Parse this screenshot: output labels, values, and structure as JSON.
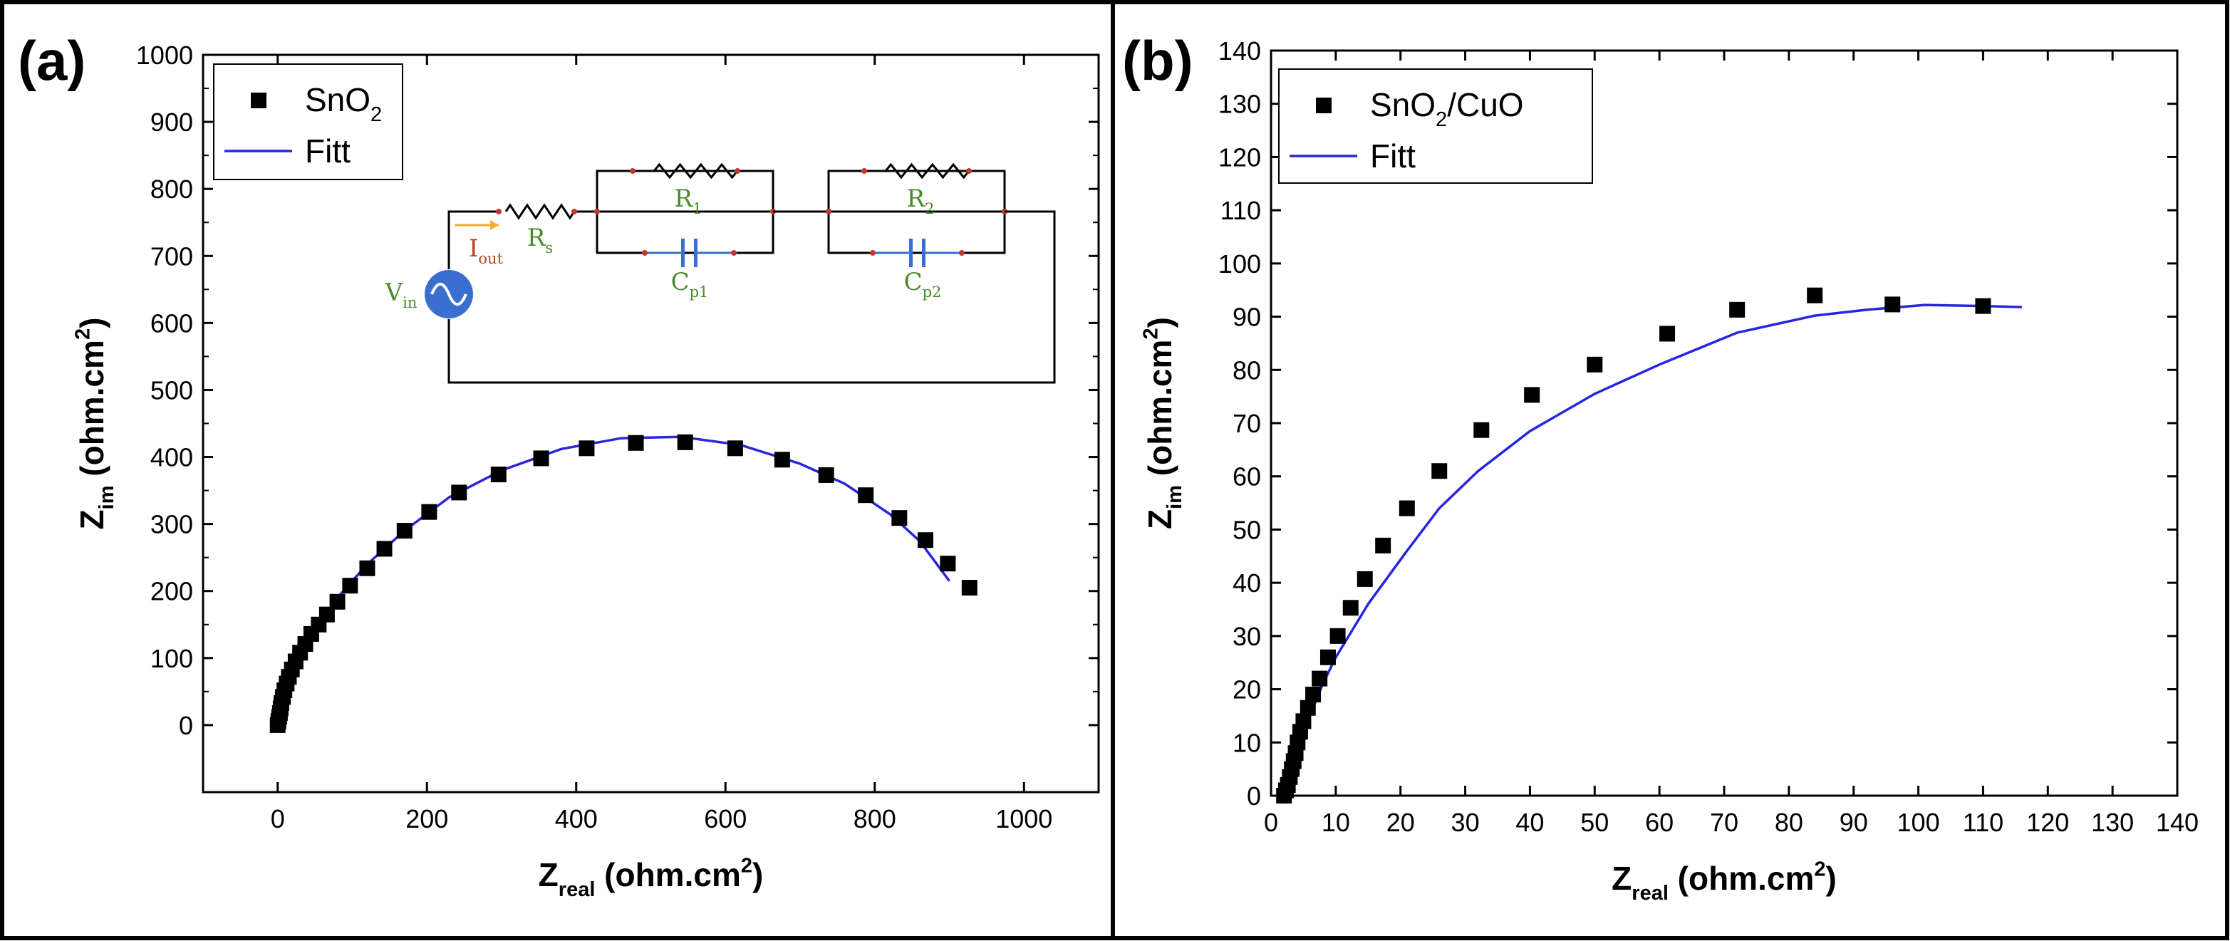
{
  "chart_data": [
    {
      "type": "scatter",
      "panel_label": "(a)",
      "xlabel": {
        "main": "Z",
        "sub": "real",
        "unit": " (ohm.cm",
        "sup": "2",
        "close": ")"
      },
      "ylabel": {
        "main": "Z",
        "sub": "im",
        "unit": " (ohm.cm",
        "sup": "2",
        "close": ")"
      },
      "xlim": [
        -100,
        1100
      ],
      "ylim": [
        -100,
        1000
      ],
      "xticks": [
        0,
        200,
        400,
        600,
        800,
        1000
      ],
      "yticks": [
        0,
        100,
        200,
        300,
        400,
        500,
        600,
        700,
        800,
        900,
        1000
      ],
      "legend": {
        "placement": "top-left",
        "marker_label": "SnO",
        "marker_sub": "2",
        "marker_rest": "",
        "line_label": "Fitt"
      },
      "colors": {
        "fit": "#2626e0",
        "marker": "#000000"
      },
      "series": [
        {
          "name": "SnO2",
          "kind": "marker",
          "points": [
            [
              0,
              0
            ],
            [
              1,
              6
            ],
            [
              2,
              12
            ],
            [
              3,
              18
            ],
            [
              4,
              25
            ],
            [
              5,
              33
            ],
            [
              7,
              42
            ],
            [
              9,
              52
            ],
            [
              12,
              62
            ],
            [
              15,
              72
            ],
            [
              19,
              83
            ],
            [
              24,
              95
            ],
            [
              30,
              108
            ],
            [
              37,
              121
            ],
            [
              45,
              136
            ],
            [
              55,
              150
            ],
            [
              66,
              165
            ],
            [
              80,
              184
            ],
            [
              97,
              208
            ],
            [
              120,
              234
            ],
            [
              143,
              263
            ],
            [
              170,
              290
            ],
            [
              203,
              318
            ],
            [
              243,
              347
            ],
            [
              296,
              374
            ],
            [
              353,
              398
            ],
            [
              414,
              413
            ],
            [
              480,
              421
            ],
            [
              546,
              422
            ],
            [
              613,
              413
            ],
            [
              676,
              396
            ],
            [
              735,
              373
            ],
            [
              788,
              343
            ],
            [
              833,
              309
            ],
            [
              868,
              276
            ],
            [
              898,
              241
            ],
            [
              927,
              205
            ]
          ]
        },
        {
          "name": "Fitt",
          "kind": "line",
          "points": [
            [
              0,
              0
            ],
            [
              5,
              25
            ],
            [
              10,
              50
            ],
            [
              20,
              80
            ],
            [
              30,
              100
            ],
            [
              50,
              140
            ],
            [
              80,
              190
            ],
            [
              120,
              240
            ],
            [
              170,
              290
            ],
            [
              230,
              340
            ],
            [
              300,
              380
            ],
            [
              380,
              412
            ],
            [
              460,
              428
            ],
            [
              540,
              430
            ],
            [
              620,
              418
            ],
            [
              700,
              390
            ],
            [
              760,
              360
            ],
            [
              820,
              315
            ],
            [
              860,
              275
            ],
            [
              900,
              215
            ]
          ]
        }
      ],
      "inset": {
        "labels": {
          "rs": "R",
          "rs_sub": "s",
          "r1": "R",
          "r1_sub": "1",
          "r2": "R",
          "r2_sub": "2",
          "cp1": "C",
          "cp1_sub": "p1",
          "cp2": "C",
          "cp2_sub": "p2",
          "vin": "V",
          "vin_sub": "in",
          "iout": "I",
          "iout_sub": "out"
        },
        "colors": {
          "label": "#4a8a2a",
          "current": "#b5461a",
          "source": "#3a6fd0",
          "arrow": "#f0b030",
          "node": "#c0392b",
          "wire": "#000000",
          "cap": "#3a6fd0"
        }
      }
    },
    {
      "type": "scatter",
      "panel_label": "(b)",
      "xlabel": {
        "main": "Z",
        "sub": "real",
        "unit": " (ohm.cm",
        "sup": "2",
        "close": ")"
      },
      "ylabel": {
        "main": "Z",
        "sub": "im",
        "unit": " (ohm.cm",
        "sup": "2",
        "close": ")"
      },
      "xlim": [
        0,
        140
      ],
      "ylim": [
        0,
        140
      ],
      "xticks": [
        0,
        10,
        20,
        30,
        40,
        50,
        60,
        70,
        80,
        90,
        100,
        110,
        120,
        130,
        140
      ],
      "yticks": [
        0,
        10,
        20,
        30,
        40,
        50,
        60,
        70,
        80,
        90,
        100,
        110,
        120,
        130,
        140
      ],
      "legend": {
        "placement": "top-left",
        "marker_label": "SnO",
        "marker_sub": "2",
        "marker_rest": "/CuO",
        "line_label": "Fitt"
      },
      "colors": {
        "fit": "#2626e0",
        "marker": "#000000"
      },
      "series": [
        {
          "name": "SnO2/CuO",
          "kind": "marker",
          "points": [
            [
              2,
              0
            ],
            [
              2.3,
              1
            ],
            [
              2.6,
              2
            ],
            [
              2.9,
              3.5
            ],
            [
              3.2,
              5
            ],
            [
              3.5,
              6.5
            ],
            [
              3.8,
              8
            ],
            [
              4.1,
              10
            ],
            [
              4.5,
              12
            ],
            [
              5,
              14
            ],
            [
              5.7,
              16.5
            ],
            [
              6.5,
              19
            ],
            [
              7.5,
              22
            ],
            [
              8.8,
              26
            ],
            [
              10.3,
              30
            ],
            [
              12.3,
              35.3
            ],
            [
              14.5,
              40.7
            ],
            [
              17.3,
              47
            ],
            [
              21,
              54
            ],
            [
              26,
              61
            ],
            [
              32.5,
              68.7
            ],
            [
              40.3,
              75.3
            ],
            [
              50,
              81
            ],
            [
              61.2,
              86.8
            ],
            [
              72,
              91.3
            ],
            [
              84,
              94
            ],
            [
              96,
              92.3
            ],
            [
              110,
              92
            ]
          ]
        },
        {
          "name": "Fitt",
          "kind": "line",
          "points": [
            [
              1.8,
              0
            ],
            [
              2.5,
              2
            ],
            [
              3.5,
              5
            ],
            [
              4.5,
              10
            ],
            [
              6,
              15
            ],
            [
              8,
              21
            ],
            [
              10,
              26
            ],
            [
              12.5,
              31
            ],
            [
              15,
              36
            ],
            [
              18,
              41
            ],
            [
              21,
              46
            ],
            [
              26,
              54
            ],
            [
              32,
              61
            ],
            [
              40,
              68.5
            ],
            [
              50,
              75.5
            ],
            [
              60,
              81
            ],
            [
              72,
              87
            ],
            [
              84,
              90.2
            ],
            [
              92,
              91.3
            ],
            [
              101,
              92.2
            ],
            [
              110,
              92
            ],
            [
              116,
              91.8
            ]
          ]
        }
      ]
    }
  ]
}
